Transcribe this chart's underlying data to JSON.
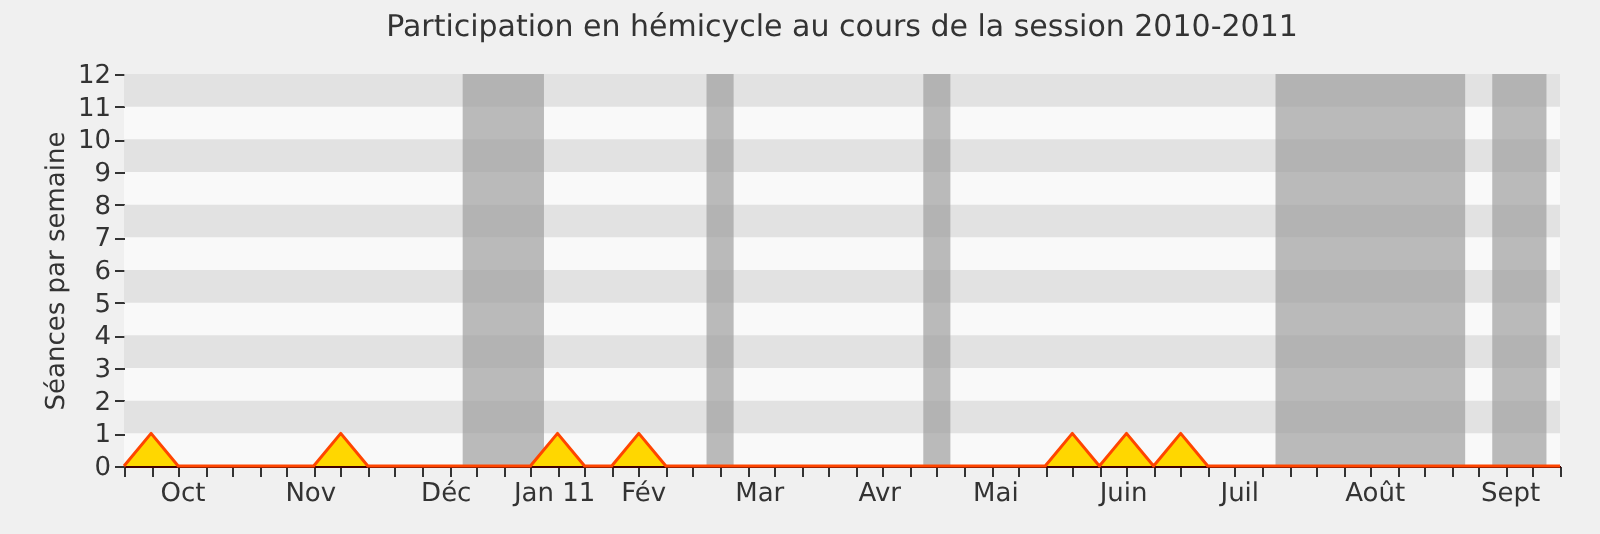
{
  "chart_data": {
    "type": "area",
    "title": "Participation en hémicycle au cours de la session 2010-2011",
    "ylabel": "Séances par semaine",
    "x": [
      "2010-09-27",
      "2010-10-04",
      "2010-10-11",
      "2010-10-18",
      "2010-10-25",
      "2010-11-01",
      "2010-11-08",
      "2010-11-15",
      "2010-11-22",
      "2010-11-29",
      "2010-12-06",
      "2010-12-13",
      "2010-12-20",
      "2010-12-27",
      "2011-01-03",
      "2011-01-10",
      "2011-01-17",
      "2011-01-24",
      "2011-01-31",
      "2011-02-07",
      "2011-02-14",
      "2011-02-21",
      "2011-02-28",
      "2011-03-07",
      "2011-03-14",
      "2011-03-21",
      "2011-03-28",
      "2011-04-04",
      "2011-04-11",
      "2011-04-18",
      "2011-04-25",
      "2011-05-02",
      "2011-05-09",
      "2011-05-16",
      "2011-05-23",
      "2011-05-30",
      "2011-06-06",
      "2011-06-13",
      "2011-06-20",
      "2011-06-27",
      "2011-07-04",
      "2011-07-11",
      "2011-07-18",
      "2011-07-25",
      "2011-08-01",
      "2011-08-08",
      "2011-08-15",
      "2011-08-22",
      "2011-08-29",
      "2011-09-05",
      "2011-09-12",
      "2011-09-19",
      "2011-09-26",
      "2011-10-03"
    ],
    "series": [
      {
        "color": "#ffd700",
        "values": [
          0,
          1,
          0,
          0,
          0,
          0,
          0,
          0,
          1,
          0,
          0,
          0,
          0,
          0,
          0,
          0,
          1,
          0,
          0,
          1,
          0,
          0,
          0,
          0,
          0,
          0,
          0,
          0,
          0,
          0,
          0,
          0,
          0,
          0,
          0,
          1,
          0,
          1,
          0,
          1,
          0,
          0,
          0,
          0,
          0,
          0,
          0,
          0,
          0,
          0,
          0,
          0,
          0,
          0
        ]
      }
    ],
    "xlim": [
      "2010-09-27",
      "2011-10-03"
    ],
    "xticks": [
      {
        "value": "2010-09-27",
        "label": null
      },
      {
        "value": "2010-10-04",
        "label": null
      },
      {
        "value": "2010-10-11",
        "label": null
      },
      {
        "value": "2010-10-12",
        "label": "Oct"
      },
      {
        "value": "2010-10-18",
        "label": null
      },
      {
        "value": "2010-10-25",
        "label": null
      },
      {
        "value": "2010-11-01",
        "label": null
      },
      {
        "value": "2010-11-08",
        "label": null
      },
      {
        "value": "2010-11-14",
        "label": "Nov"
      },
      {
        "value": "2010-11-15",
        "label": null
      },
      {
        "value": "2010-11-22",
        "label": null
      },
      {
        "value": "2010-11-29",
        "label": null
      },
      {
        "value": "2010-12-06",
        "label": null
      },
      {
        "value": "2010-12-13",
        "label": null
      },
      {
        "value": "2010-12-19",
        "label": "Déc"
      },
      {
        "value": "2010-12-20",
        "label": null
      },
      {
        "value": "2010-12-27",
        "label": null
      },
      {
        "value": "2011-01-03",
        "label": null
      },
      {
        "value": "2011-01-10",
        "label": null
      },
      {
        "value": "2011-01-16",
        "label": "Jan 11"
      },
      {
        "value": "2011-01-17",
        "label": null
      },
      {
        "value": "2011-01-24",
        "label": null
      },
      {
        "value": "2011-01-31",
        "label": null
      },
      {
        "value": "2011-02-07",
        "label": null
      },
      {
        "value": "2011-02-08",
        "label": "Fév"
      },
      {
        "value": "2011-02-14",
        "label": null
      },
      {
        "value": "2011-02-21",
        "label": null
      },
      {
        "value": "2011-02-28",
        "label": null
      },
      {
        "value": "2011-03-07",
        "label": null
      },
      {
        "value": "2011-03-10",
        "label": "Mar"
      },
      {
        "value": "2011-03-14",
        "label": null
      },
      {
        "value": "2011-03-21",
        "label": null
      },
      {
        "value": "2011-03-28",
        "label": null
      },
      {
        "value": "2011-04-04",
        "label": null
      },
      {
        "value": "2011-04-10",
        "label": "Avr"
      },
      {
        "value": "2011-04-11",
        "label": null
      },
      {
        "value": "2011-04-18",
        "label": null
      },
      {
        "value": "2011-04-25",
        "label": null
      },
      {
        "value": "2011-05-02",
        "label": null
      },
      {
        "value": "2011-05-09",
        "label": null
      },
      {
        "value": "2011-05-10",
        "label": "Mai"
      },
      {
        "value": "2011-05-16",
        "label": null
      },
      {
        "value": "2011-05-23",
        "label": null
      },
      {
        "value": "2011-05-30",
        "label": null
      },
      {
        "value": "2011-06-06",
        "label": null
      },
      {
        "value": "2011-06-12",
        "label": "Juin"
      },
      {
        "value": "2011-06-13",
        "label": null
      },
      {
        "value": "2011-06-20",
        "label": null
      },
      {
        "value": "2011-06-27",
        "label": null
      },
      {
        "value": "2011-07-04",
        "label": null
      },
      {
        "value": "2011-07-11",
        "label": null
      },
      {
        "value": "2011-07-12",
        "label": "Juil"
      },
      {
        "value": "2011-07-18",
        "label": null
      },
      {
        "value": "2011-07-25",
        "label": null
      },
      {
        "value": "2011-08-01",
        "label": null
      },
      {
        "value": "2011-08-08",
        "label": null
      },
      {
        "value": "2011-08-15",
        "label": null
      },
      {
        "value": "2011-08-16",
        "label": "Août"
      },
      {
        "value": "2011-08-22",
        "label": null
      },
      {
        "value": "2011-08-29",
        "label": null
      },
      {
        "value": "2011-09-05",
        "label": null
      },
      {
        "value": "2011-09-12",
        "label": null
      },
      {
        "value": "2011-09-19",
        "label": null
      },
      {
        "value": "2011-09-20",
        "label": "Sept"
      },
      {
        "value": "2011-09-26",
        "label": null
      },
      {
        "value": "2011-10-03",
        "label": null
      }
    ],
    "ylim": [
      0,
      12
    ],
    "yticks": [
      0,
      1,
      2,
      3,
      4,
      5,
      6,
      7,
      8,
      9,
      10,
      11,
      12
    ],
    "line_style": "solid",
    "bands": [
      {
        "axis": "y",
        "from": 1,
        "to": 2,
        "color": "#d8d8d8"
      },
      {
        "axis": "y",
        "from": 3,
        "to": 4,
        "color": "#d8d8d8"
      },
      {
        "axis": "y",
        "from": 5,
        "to": 6,
        "color": "#d8d8d8"
      },
      {
        "axis": "y",
        "from": 7,
        "to": 8,
        "color": "#d8d8d8"
      },
      {
        "axis": "y",
        "from": 9,
        "to": 10,
        "color": "#d8d8d8"
      },
      {
        "axis": "y",
        "from": 11,
        "to": 12,
        "color": "#d8d8d8"
      },
      {
        "axis": "x",
        "from": "2010-12-23T12:00",
        "to": "2011-01-13T12:00",
        "color": "#a0a0a0"
      },
      {
        "axis": "x",
        "from": "2011-02-24T12:00",
        "to": "2011-03-03T12:00",
        "color": "#a0a0a0"
      },
      {
        "axis": "x",
        "from": "2011-04-21T12:00",
        "to": "2011-04-28T12:00",
        "color": "#a0a0a0"
      },
      {
        "axis": "x",
        "from": "2011-07-21T12:00",
        "to": "2011-09-08T12:00",
        "color": "#a0a0a0"
      },
      {
        "axis": "x",
        "from": "2011-09-15T12:00",
        "to": "2011-09-29T12:00",
        "color": "#a0a0a0"
      }
    ]
  }
}
